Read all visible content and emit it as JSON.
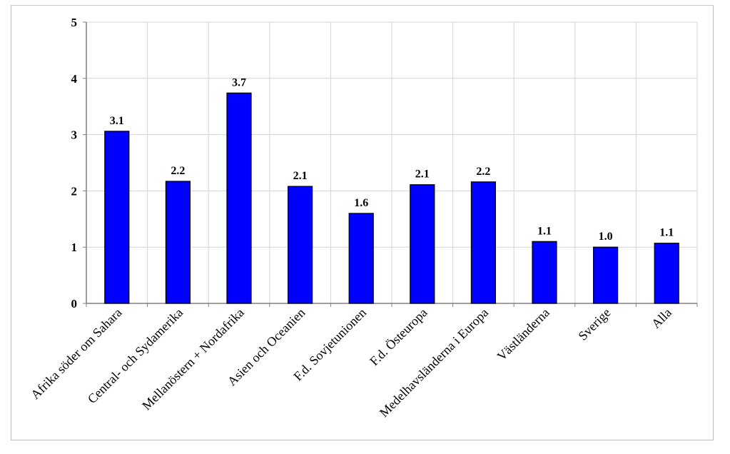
{
  "chart_data": {
    "type": "bar",
    "title": "",
    "xlabel": "",
    "ylabel": "",
    "ylim": [
      0,
      5
    ],
    "yticks": [
      "0",
      "1",
      "2",
      "3",
      "4",
      "5"
    ],
    "grid": true,
    "bar_color": "#0000ff",
    "categories": [
      "Afrika söder om Sahara",
      "Central- och Sydamerika",
      "Mellanöstern + Nordafrika",
      "Asien och Oceanien",
      "F.d. Sovjetunionen",
      "F.d. Östeuropa",
      "Medelhavsländerna i Europa",
      "Västländerna",
      "Sverige",
      "Alla"
    ],
    "values": [
      3.06,
      2.17,
      3.74,
      2.08,
      1.6,
      2.11,
      2.16,
      1.1,
      1.0,
      1.07
    ],
    "data_labels": [
      "3.1",
      "2.2",
      "3.7",
      "2.1",
      "1.6",
      "2.1",
      "2.2",
      "1.1",
      "1.0",
      "1.1"
    ]
  }
}
